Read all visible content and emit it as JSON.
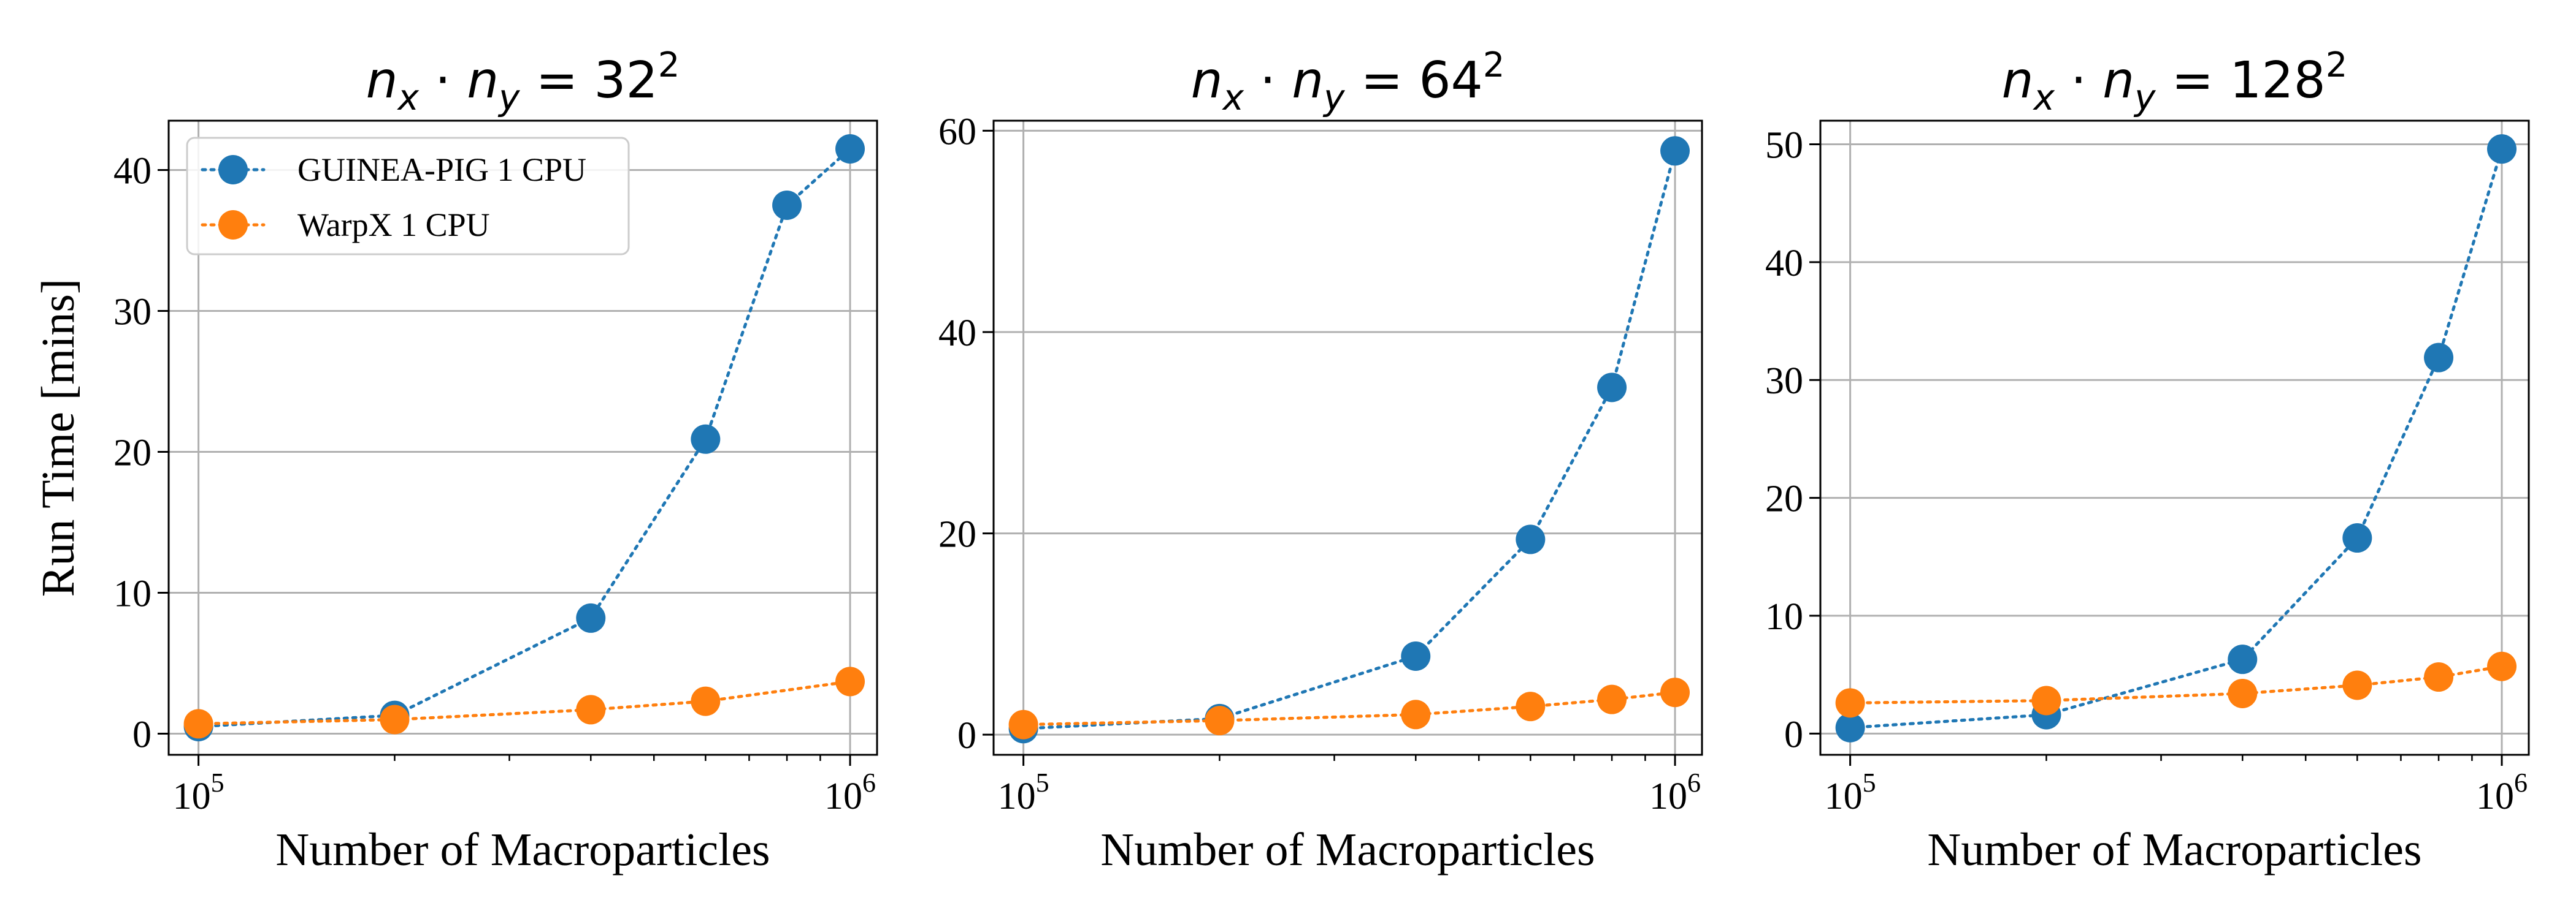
{
  "chart_data": [
    {
      "type": "line",
      "title": "n_x · n_y = 32²",
      "title_parts": {
        "a": "n",
        "a_sub": "x",
        "dot": " · ",
        "b": "n",
        "b_sub": "y",
        "eq": " = 32",
        "exp": "2"
      },
      "xlabel": "Number of Macroparticles",
      "ylabel": "Run Time [mins]",
      "xscale": "log",
      "xlim": [
        90000,
        1100000
      ],
      "ylim": [
        -1.5,
        43.5
      ],
      "yticks": [
        0,
        10,
        20,
        30,
        40
      ],
      "ytick_labels": [
        "0",
        "10",
        "20",
        "30",
        "40"
      ],
      "xticks": [
        100000,
        1000000
      ],
      "xtick_labels": [
        {
          "base": "10",
          "exp": "5"
        },
        {
          "base": "10",
          "exp": "6"
        }
      ],
      "grid": true,
      "legend": "top-left",
      "show_legend": true,
      "series": [
        {
          "name": "GUINEA-PIG 1 CPU",
          "color": "#1f77b4",
          "style": "dotted",
          "x": [
            100000,
            200000,
            400000,
            600000,
            800000,
            1000000
          ],
          "values": [
            0.5,
            1.3,
            8.2,
            20.9,
            37.5,
            41.5
          ]
        },
        {
          "name": "WarpX 1 CPU",
          "color": "#ff7f0e",
          "style": "dotted",
          "x": [
            100000,
            200000,
            400000,
            600000,
            800000,
            1000000
          ],
          "values": [
            0.7,
            1.0,
            1.7,
            2.3,
            null,
            3.7
          ]
        }
      ]
    },
    {
      "type": "line",
      "title": "n_x · n_y = 64²",
      "title_parts": {
        "a": "n",
        "a_sub": "x",
        "dot": " · ",
        "b": "n",
        "b_sub": "y",
        "eq": " = 64",
        "exp": "2"
      },
      "xlabel": "Number of Macroparticles",
      "ylabel": "",
      "xscale": "log",
      "xlim": [
        90000,
        1100000
      ],
      "ylim": [
        -2.0,
        61.0
      ],
      "yticks": [
        0,
        20,
        40,
        60
      ],
      "ytick_labels": [
        "0",
        "20",
        "40",
        "60"
      ],
      "xticks": [
        100000,
        1000000
      ],
      "xtick_labels": [
        {
          "base": "10",
          "exp": "5"
        },
        {
          "base": "10",
          "exp": "6"
        }
      ],
      "grid": true,
      "legend": "none",
      "show_legend": false,
      "series": [
        {
          "name": "GUINEA-PIG 1 CPU",
          "color": "#1f77b4",
          "style": "dotted",
          "x": [
            100000,
            200000,
            400000,
            600000,
            800000,
            1000000
          ],
          "values": [
            0.6,
            1.6,
            7.8,
            19.4,
            34.5,
            58.0
          ]
        },
        {
          "name": "WarpX 1 CPU",
          "color": "#ff7f0e",
          "style": "dotted",
          "x": [
            100000,
            200000,
            400000,
            600000,
            800000,
            1000000
          ],
          "values": [
            1.0,
            1.4,
            2.0,
            2.8,
            3.5,
            4.2
          ]
        }
      ]
    },
    {
      "type": "line",
      "title": "n_x · n_y = 128²",
      "title_parts": {
        "a": "n",
        "a_sub": "x",
        "dot": " · ",
        "b": "n",
        "b_sub": "y",
        "eq": " = 128",
        "exp": "2"
      },
      "xlabel": "Number of Macroparticles",
      "ylabel": "",
      "xscale": "log",
      "xlim": [
        90000,
        1100000
      ],
      "ylim": [
        -1.8,
        52.0
      ],
      "yticks": [
        0,
        10,
        20,
        30,
        40,
        50
      ],
      "ytick_labels": [
        "0",
        "10",
        "20",
        "30",
        "40",
        "50"
      ],
      "xticks": [
        100000,
        1000000
      ],
      "xtick_labels": [
        {
          "base": "10",
          "exp": "5"
        },
        {
          "base": "10",
          "exp": "6"
        }
      ],
      "grid": true,
      "legend": "none",
      "show_legend": false,
      "series": [
        {
          "name": "GUINEA-PIG 1 CPU",
          "color": "#1f77b4",
          "style": "dotted",
          "x": [
            100000,
            200000,
            400000,
            600000,
            800000,
            1000000
          ],
          "values": [
            0.5,
            1.6,
            6.3,
            16.6,
            31.9,
            49.6
          ]
        },
        {
          "name": "WarpX 1 CPU",
          "color": "#ff7f0e",
          "style": "dotted",
          "x": [
            100000,
            200000,
            400000,
            600000,
            800000,
            1000000
          ],
          "values": [
            2.6,
            2.8,
            3.4,
            4.1,
            4.8,
            5.7
          ]
        }
      ]
    }
  ]
}
